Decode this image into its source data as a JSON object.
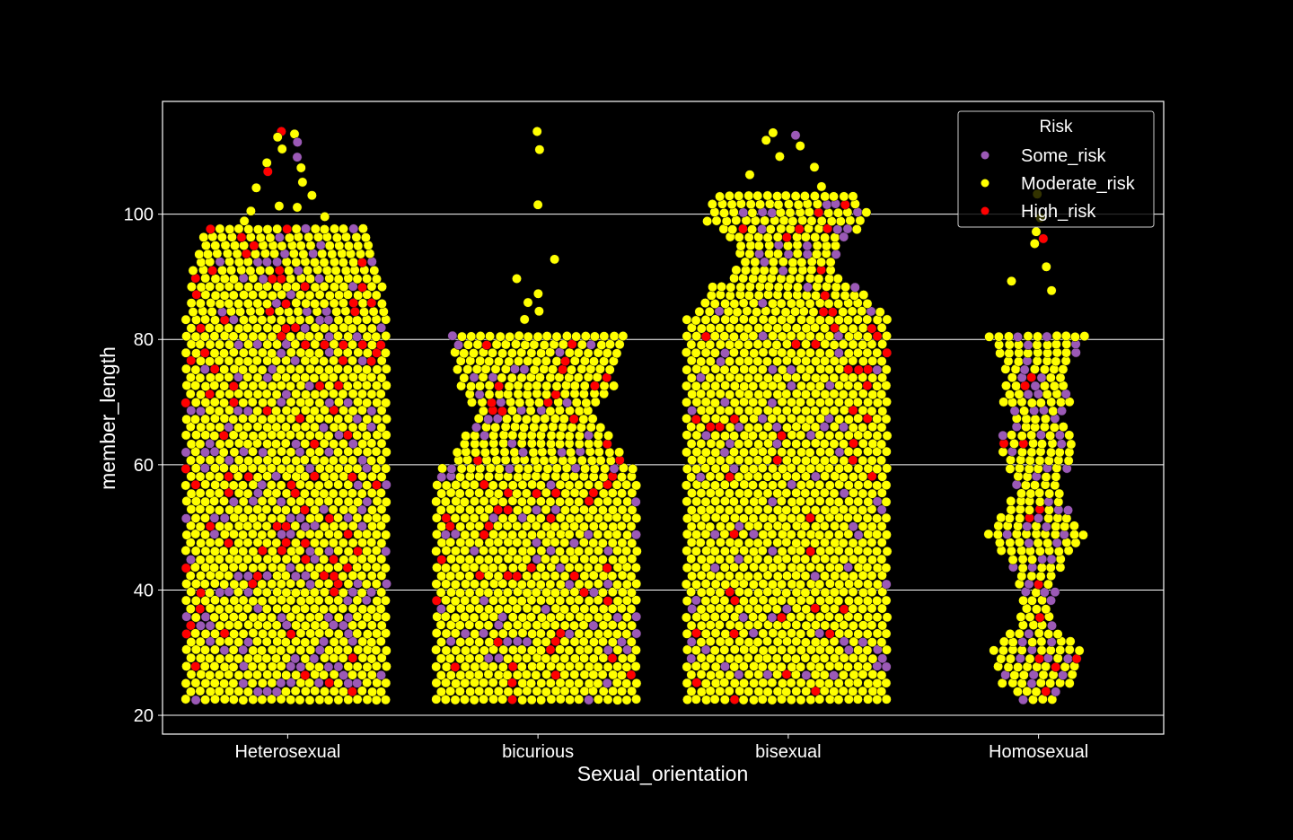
{
  "chart_data": {
    "type": "scatter",
    "subtype": "swarm",
    "xlabel": "Sexual_orientation",
    "ylabel": "member_length",
    "categories": [
      "Heterosexual",
      "bicurious",
      "bisexual",
      "Homosexual"
    ],
    "ylim": [
      17,
      118
    ],
    "yticks": [
      20,
      40,
      60,
      80,
      100
    ],
    "grid": "y",
    "legend": {
      "title": "Risk",
      "placement": "top-right",
      "entries": [
        {
          "name": "Some_risk",
          "color": "#9b59b6"
        },
        {
          "name": "Moderate_risk",
          "color": "#ffff00"
        },
        {
          "name": "High_risk",
          "color": "#ff0000"
        }
      ]
    },
    "series": [
      {
        "category": "Heterosexual",
        "range": [
          22.5,
          113.5
        ],
        "dense_max": 98,
        "sparse_points": [
          113.2,
          112.8,
          112.3,
          111.5,
          110.4,
          109.1,
          108.2,
          107.4,
          106.8,
          105.1,
          104.2,
          103.0,
          101.3,
          101.1,
          100.5,
          99.6,
          98.9
        ],
        "counts": {
          "Some_risk": 240,
          "Moderate_risk": 1450,
          "High_risk": 130
        },
        "width_profile": [
          [
            22.5,
            1.0
          ],
          [
            84,
            1.0
          ],
          [
            85,
            0.95
          ],
          [
            90,
            0.95
          ],
          [
            95,
            0.85
          ],
          [
            98,
            0.8
          ],
          [
            102,
            0.55
          ],
          [
            106,
            0.35
          ],
          [
            110,
            0.2
          ],
          [
            113.5,
            0.12
          ]
        ]
      },
      {
        "category": "bicurious",
        "range": [
          22.5,
          113.5
        ],
        "dense_max": 81,
        "sparse_points": [
          113.2,
          110.3,
          101.5,
          92.8,
          89.7,
          87.3,
          85.9,
          84.5,
          83.2
        ],
        "counts": {
          "Some_risk": 110,
          "Moderate_risk": 1050,
          "High_risk": 70
        },
        "width_profile": [
          [
            22.5,
            1.0
          ],
          [
            59,
            1.0
          ],
          [
            60,
            0.85
          ],
          [
            64,
            0.75
          ],
          [
            68,
            0.55
          ],
          [
            72,
            0.75
          ],
          [
            76,
            0.8
          ],
          [
            81,
            0.85
          ]
        ]
      },
      {
        "category": "bisexual",
        "range": [
          22.5,
          113.5
        ],
        "dense_max": 103,
        "sparse_points": [
          113.0,
          112.6,
          111.8,
          110.9,
          109.2,
          107.5,
          106.3,
          104.4
        ],
        "counts": {
          "Some_risk": 150,
          "Moderate_risk": 1750,
          "High_risk": 85
        },
        "width_profile": [
          [
            22.5,
            1.0
          ],
          [
            84,
            1.0
          ],
          [
            85,
            0.82
          ],
          [
            88,
            0.8
          ],
          [
            90,
            0.55
          ],
          [
            93,
            0.45
          ],
          [
            96,
            0.55
          ],
          [
            99,
            0.8
          ],
          [
            103,
            0.72
          ]
        ]
      },
      {
        "category": "Homosexual",
        "range": [
          22.5,
          103.5
        ],
        "dense_max": 81,
        "sparse_points": [
          103.2,
          99.4,
          97.2,
          96.1,
          95.3,
          91.6,
          89.3,
          87.8
        ],
        "counts": {
          "Some_risk": 35,
          "Moderate_risk": 140,
          "High_risk": 12
        },
        "width_profile": [
          [
            22.5,
            0.15
          ],
          [
            25,
            0.35
          ],
          [
            28,
            0.4
          ],
          [
            31,
            0.45
          ],
          [
            34,
            0.2
          ],
          [
            38,
            0.15
          ],
          [
            42,
            0.2
          ],
          [
            45,
            0.3
          ],
          [
            49,
            0.5
          ],
          [
            52,
            0.35
          ],
          [
            56,
            0.2
          ],
          [
            60,
            0.3
          ],
          [
            64,
            0.4
          ],
          [
            67,
            0.2
          ],
          [
            70,
            0.35
          ],
          [
            74,
            0.3
          ],
          [
            77,
            0.35
          ],
          [
            81,
            0.5
          ]
        ]
      }
    ]
  }
}
